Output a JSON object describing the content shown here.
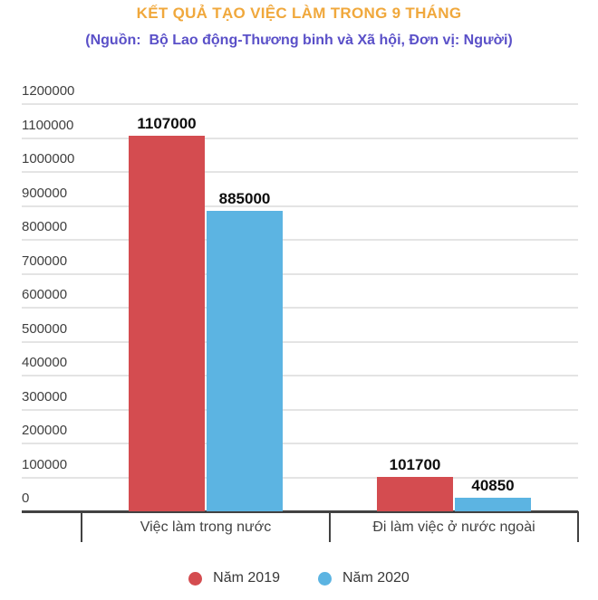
{
  "title": "KẾT QUẢ TẠO VIỆC LÀM TRONG 9 THÁNG",
  "subtitle": "(Nguồn:  Bộ Lao động-Thương binh và Xã hội, Đơn vị: Người)",
  "colors": {
    "title": "#F0A83C",
    "subtitle": "#5A50C8",
    "series_2019": "#D44C50",
    "series_2020": "#5CB4E2",
    "gridline": "#E4E4E4",
    "axis": "#424242",
    "y_tick_text": "#404040",
    "category_text": "#424242",
    "legend_text": "#383838",
    "background": "#FFFFFF"
  },
  "chart_data": {
    "type": "bar",
    "title": "KẾT QUẢ TẠO VIỆC LÀM TRONG 9 THÁNG",
    "subtitle": "(Nguồn:  Bộ Lao động-Thương binh và Xã hội, Đơn vị: Người)",
    "categories": [
      "Việc làm trong nước",
      "Đi làm việc ở nước ngoài"
    ],
    "series": [
      {
        "name": "Năm 2019",
        "color": "#D44C50",
        "values": [
          1107000,
          101700
        ]
      },
      {
        "name": "Năm 2020",
        "color": "#5CB4E2",
        "values": [
          885000,
          40850
        ]
      }
    ],
    "data_labels": [
      "1107000",
      "885000",
      "101700",
      "40850"
    ],
    "xlabel": "",
    "ylabel": "",
    "ylim": [
      0,
      1200000
    ],
    "y_ticks": [
      0,
      100000,
      200000,
      300000,
      400000,
      500000,
      600000,
      700000,
      800000,
      900000,
      1000000,
      1100000,
      1200000
    ],
    "grid": true,
    "legend_position": "bottom",
    "unit": "Người"
  }
}
